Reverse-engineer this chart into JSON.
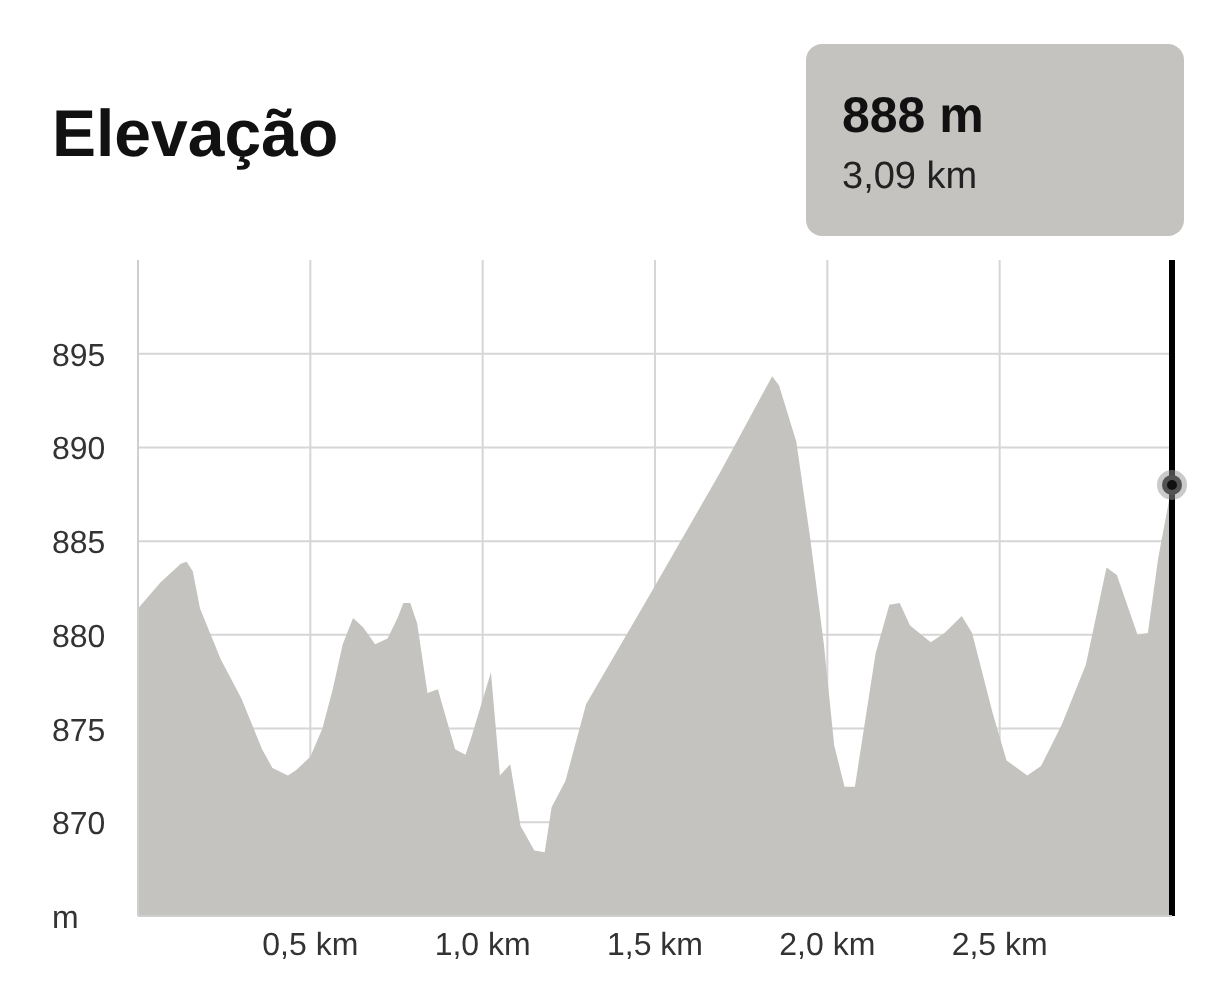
{
  "chart_data": {
    "type": "area",
    "title": "Elevação",
    "annotations": [
      "888 m",
      "3,09 km"
    ],
    "x": [
      0,
      0.065,
      0.124,
      0.141,
      0.159,
      0.18,
      0.24,
      0.3,
      0.36,
      0.39,
      0.435,
      0.46,
      0.5,
      0.535,
      0.565,
      0.594,
      0.624,
      0.653,
      0.688,
      0.724,
      0.753,
      0.77,
      0.79,
      0.81,
      0.84,
      0.87,
      0.92,
      0.95,
      0.965,
      1.024,
      1.05,
      1.08,
      1.11,
      1.15,
      1.18,
      1.2,
      1.24,
      1.3,
      1.49,
      1.69,
      1.84,
      1.86,
      1.91,
      1.95,
      1.99,
      2.02,
      2.05,
      2.08,
      2.14,
      2.18,
      2.21,
      2.24,
      2.3,
      2.34,
      2.39,
      2.42,
      2.48,
      2.52,
      2.58,
      2.62,
      2.68,
      2.75,
      2.81,
      2.84,
      2.9,
      2.93,
      2.96,
      3.0
    ],
    "series": [
      {
        "color": "#c4c3bf",
        "values": [
          881.4,
          882.8,
          883.8,
          883.9,
          883.4,
          881.4,
          878.7,
          876.6,
          873.9,
          872.9,
          872.5,
          872.8,
          873.5,
          875,
          877.1,
          879.5,
          880.9,
          880.4,
          879.5,
          879.8,
          880.9,
          881.7,
          881.7,
          880.6,
          876.9,
          877.1,
          873.9,
          873.6,
          874.4,
          878,
          872.5,
          873.1,
          869.8,
          868.5,
          868.4,
          870.8,
          872.2,
          876.3,
          882.3,
          888.7,
          893.8,
          893.3,
          890.3,
          885.2,
          879.5,
          874.1,
          871.9,
          871.9,
          879,
          881.6,
          881.7,
          880.5,
          879.6,
          880.1,
          881,
          880.1,
          875.8,
          873.3,
          872.5,
          873,
          875.2,
          878.4,
          883.6,
          883.2,
          880,
          880.1,
          884.1,
          888
        ]
      }
    ],
    "xlim": [
      0,
      3.0
    ],
    "xticks": [
      {
        "value": 0.5,
        "label": "0,5 km"
      },
      {
        "value": 1.0,
        "label": "1,0 km"
      },
      {
        "value": 1.5,
        "label": "1,5 km"
      },
      {
        "value": 2.0,
        "label": "2,0 km"
      },
      {
        "value": 2.5,
        "label": "2,5 km"
      }
    ],
    "ylim": [
      865,
      900
    ],
    "yticks": [
      {
        "value": 865,
        "label": "m"
      },
      870,
      875,
      880,
      885,
      890,
      895
    ],
    "ref_lines": [
      {
        "axis": "x",
        "value": 3.0,
        "color": "#000000"
      }
    ],
    "grid": true,
    "legend": false
  }
}
